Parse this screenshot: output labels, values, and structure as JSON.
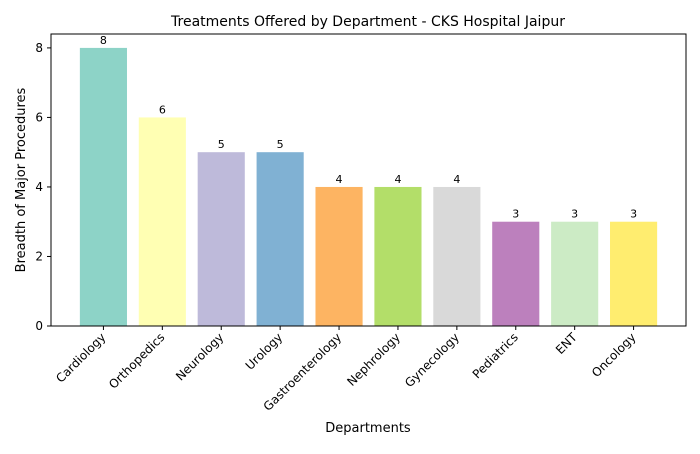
{
  "chart_data": {
    "type": "bar",
    "title": "Treatments Offered by Department - CKS Hospital Jaipur",
    "xlabel": "Departments",
    "ylabel": "Breadth of Major Procedures",
    "categories": [
      "Cardiology",
      "Orthopedics",
      "Neurology",
      "Urology",
      "Gastroenterology",
      "Nephrology",
      "Gynecology",
      "Pediatrics",
      "ENT",
      "Oncology"
    ],
    "values": [
      8,
      6,
      5,
      5,
      4,
      4,
      4,
      3,
      3,
      3
    ],
    "colors": [
      "#8dd3c7",
      "#ffffb3",
      "#bebada",
      "#80b1d3",
      "#fdb462",
      "#b3de69",
      "#d9d9d9",
      "#bc80bd",
      "#ccebc5",
      "#ffed6f"
    ],
    "yticks": [
      0,
      2,
      4,
      6,
      8
    ],
    "ylim": [
      0,
      8.4
    ],
    "grid": false,
    "data_labels": true
  }
}
